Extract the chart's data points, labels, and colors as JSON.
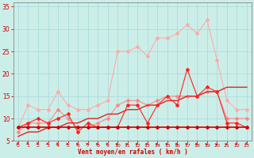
{
  "bg_color": "#cceee8",
  "grid_color": "#aadddd",
  "x": [
    0,
    1,
    2,
    3,
    4,
    5,
    6,
    7,
    8,
    9,
    10,
    11,
    12,
    13,
    14,
    15,
    16,
    17,
    18,
    19,
    20,
    21,
    22,
    23
  ],
  "series": [
    {
      "name": "lightest_pink_rafales",
      "color": "#ffaaaa",
      "linewidth": 0.8,
      "marker": "D",
      "markersize": 2.0,
      "y": [
        8,
        13,
        12,
        12,
        16,
        13,
        12,
        12,
        13,
        14,
        25,
        25,
        26,
        24,
        28,
        28,
        29,
        31,
        29,
        32,
        23,
        14,
        12,
        12
      ]
    },
    {
      "name": "light_pink_moyen",
      "color": "#ff8888",
      "linewidth": 0.8,
      "marker": "D",
      "markersize": 2.0,
      "y": [
        7,
        9,
        9,
        9,
        12,
        10,
        8,
        8,
        9,
        10,
        13,
        14,
        14,
        13,
        14,
        15,
        15,
        15,
        15,
        16,
        16,
        10,
        10,
        10
      ]
    },
    {
      "name": "medium_red_diagonal",
      "color": "#dd2222",
      "linewidth": 1.0,
      "marker": null,
      "markersize": 0,
      "y": [
        6,
        7,
        7,
        8,
        8,
        9,
        9,
        10,
        10,
        11,
        11,
        12,
        12,
        13,
        13,
        14,
        14,
        15,
        15,
        16,
        16,
        17,
        17,
        17
      ]
    },
    {
      "name": "red_variable",
      "color": "#ff2222",
      "linewidth": 0.8,
      "marker": "D",
      "markersize": 2.0,
      "y": [
        8,
        9,
        10,
        9,
        10,
        11,
        7,
        9,
        8,
        8,
        8,
        13,
        13,
        9,
        13,
        15,
        13,
        21,
        15,
        17,
        16,
        9,
        9,
        8
      ]
    },
    {
      "name": "dark_red_flat",
      "color": "#cc0000",
      "linewidth": 1.2,
      "marker": "D",
      "markersize": 2.0,
      "y": [
        8,
        8,
        8,
        8,
        8,
        8,
        8,
        8,
        8,
        8,
        8,
        8,
        8,
        8,
        8,
        8,
        8,
        8,
        8,
        8,
        8,
        8,
        8,
        8
      ]
    }
  ],
  "ylim": [
    5,
    36
  ],
  "yticks": [
    5,
    10,
    15,
    20,
    25,
    30,
    35
  ],
  "xlim": [
    -0.5,
    23.5
  ],
  "xticks": [
    0,
    1,
    2,
    3,
    4,
    5,
    6,
    7,
    8,
    9,
    10,
    11,
    12,
    13,
    14,
    15,
    16,
    17,
    18,
    19,
    20,
    21,
    22,
    23
  ],
  "xlabel": "Vent moyen/en rafales ( km/h )",
  "xlabel_color": "#cc0000",
  "tick_color": "#cc0000",
  "axis_color": "#888888",
  "figsize": [
    3.2,
    2.0
  ],
  "dpi": 100,
  "arrow_angles_deg": [
    45,
    45,
    45,
    30,
    20,
    15,
    0,
    0,
    0,
    0,
    -10,
    -15,
    0,
    0,
    0,
    0,
    0,
    -10,
    0,
    -20,
    -30,
    -20,
    0,
    45
  ]
}
